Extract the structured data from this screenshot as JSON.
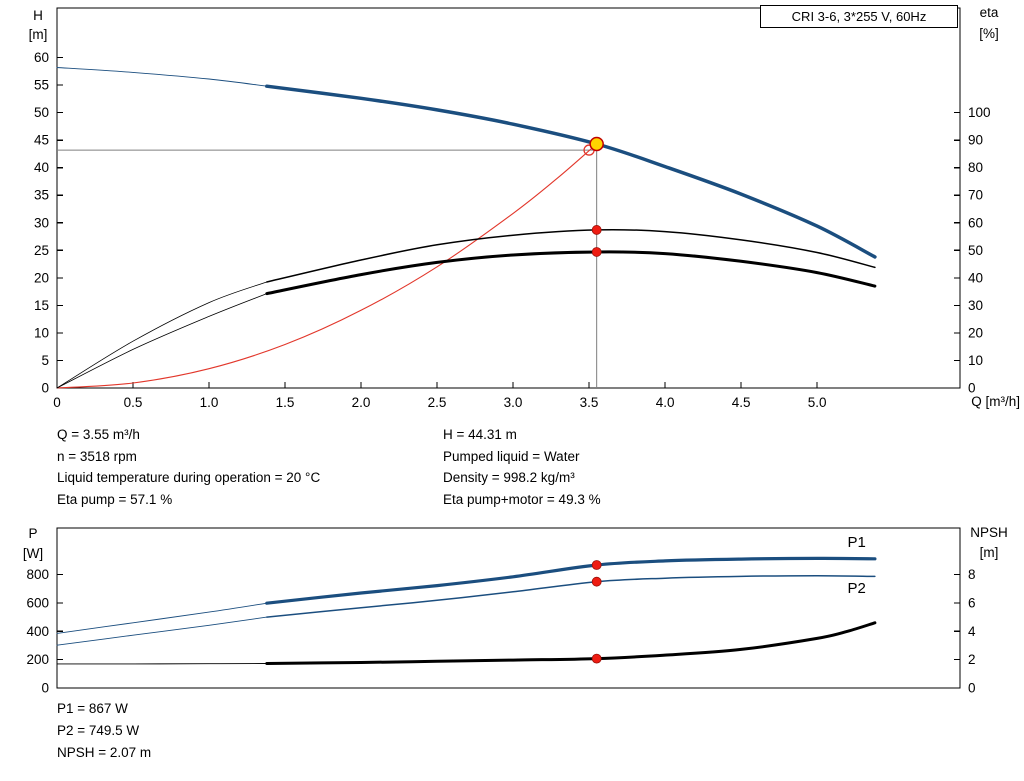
{
  "title_box": "CRI 3-6, 3*255 V, 60Hz",
  "info_top_left": [
    "Q = 3.55 m³/h",
    "n = 3518 rpm",
    "Liquid temperature during operation = 20 °C",
    "Eta pump = 57.1 %"
  ],
  "info_top_right": [
    "H = 44.31 m",
    "Pumped liquid = Water",
    "Density = 998.2 kg/m³",
    "Eta pump+motor = 49.3 %"
  ],
  "info_bottom": [
    "P1 = 867 W",
    "P2 = 749.5 W",
    "NPSH = 2.07 m"
  ],
  "colors": {
    "curve_blue": "#1b4e7f",
    "curve_red": "#e2372b",
    "marker_red": "#ee1c12",
    "duty_yellow": "#ffd400",
    "duty_ring": "#c00000",
    "crosshair_gray": "#7f7f7f",
    "label_blue": "#1b4e7f",
    "axis_black": "#000000"
  },
  "chart_data": [
    {
      "type": "line",
      "name": "qh-eta-chart",
      "x_axis": {
        "label": "Q [m³/h]",
        "min": 0,
        "max": 5.94,
        "ticks": [
          {
            "v": 0,
            "label": "0"
          },
          {
            "v": 0.5,
            "label": "0.5"
          },
          {
            "v": 1,
            "label": "1.0"
          },
          {
            "v": 1.5,
            "label": "1.5"
          },
          {
            "v": 2,
            "label": "2.0"
          },
          {
            "v": 2.5,
            "label": "2.5"
          },
          {
            "v": 3,
            "label": "3.0"
          },
          {
            "v": 3.5,
            "label": "3.5"
          },
          {
            "v": 4,
            "label": "4.0"
          },
          {
            "v": 4.5,
            "label": "4.5"
          },
          {
            "v": 5,
            "label": "5.0"
          }
        ]
      },
      "y_left": {
        "label": [
          "H",
          "[m]"
        ],
        "min": 0,
        "max": 69,
        "ticks": [
          {
            "v": 0,
            "label": "0"
          },
          {
            "v": 5,
            "label": "5"
          },
          {
            "v": 10,
            "label": "10"
          },
          {
            "v": 15,
            "label": "15"
          },
          {
            "v": 20,
            "label": "20"
          },
          {
            "v": 25,
            "label": "25"
          },
          {
            "v": 30,
            "label": "30"
          },
          {
            "v": 35,
            "label": "35"
          },
          {
            "v": 40,
            "label": "40"
          },
          {
            "v": 45,
            "label": "45"
          },
          {
            "v": 50,
            "label": "50"
          },
          {
            "v": 55,
            "label": "55"
          },
          {
            "v": 60,
            "label": "60"
          }
        ]
      },
      "y_right": {
        "label": [
          "eta",
          "[%]"
        ],
        "min": 0,
        "max": 138,
        "ticks": [
          {
            "v": 0,
            "label": "0"
          },
          {
            "v": 10,
            "label": "10"
          },
          {
            "v": 20,
            "label": "20"
          },
          {
            "v": 30,
            "label": "30"
          },
          {
            "v": 40,
            "label": "40"
          },
          {
            "v": 50,
            "label": "50"
          },
          {
            "v": 60,
            "label": "60"
          },
          {
            "v": 70,
            "label": "70"
          },
          {
            "v": 80,
            "label": "80"
          },
          {
            "v": 90,
            "label": "90"
          },
          {
            "v": 100,
            "label": "100"
          }
        ]
      },
      "series": [
        {
          "name": "pump-qh-curve",
          "axis": "left",
          "color": "#1b4e7f",
          "width": 3.5,
          "thin_until": 1.38,
          "thin_width": 0.9,
          "points": [
            [
              0,
              58.2
            ],
            [
              0.5,
              57.3
            ],
            [
              1.0,
              56.1
            ],
            [
              1.38,
              54.8
            ],
            [
              2.0,
              52.6
            ],
            [
              2.5,
              50.5
            ],
            [
              3.0,
              47.9
            ],
            [
              3.55,
              44.31
            ],
            [
              4.0,
              40.2
            ],
            [
              4.5,
              35.2
            ],
            [
              5.0,
              29.4
            ],
            [
              5.38,
              23.8
            ]
          ]
        },
        {
          "name": "system-curve",
          "axis": "left",
          "color": "#e2372b",
          "width": 1.1,
          "points": [
            [
              0,
              0
            ],
            [
              0.5,
              0.9
            ],
            [
              1.0,
              3.5
            ],
            [
              1.5,
              7.9
            ],
            [
              2.0,
              14.1
            ],
            [
              2.5,
              22.0
            ],
            [
              3.0,
              31.7
            ],
            [
              3.3,
              38.3
            ],
            [
              3.55,
              44.3
            ]
          ]
        },
        {
          "name": "eta-pump-curve",
          "axis": "right",
          "color": "#000000",
          "width": 1.5,
          "thin_until": 1.38,
          "thin_width": 0.8,
          "points": [
            [
              0,
              0
            ],
            [
              0.5,
              17
            ],
            [
              1.0,
              31
            ],
            [
              1.38,
              38.5
            ],
            [
              2.0,
              46.5
            ],
            [
              2.5,
              52
            ],
            [
              3.0,
              55.5
            ],
            [
              3.55,
              57.4
            ],
            [
              4.0,
              56.8
            ],
            [
              4.5,
              53.8
            ],
            [
              5.0,
              49.2
            ],
            [
              5.38,
              43.8
            ]
          ]
        },
        {
          "name": "eta-pump-motor-curve",
          "axis": "right",
          "color": "#000000",
          "width": 3,
          "thin_until": 1.38,
          "thin_width": 0.8,
          "points": [
            [
              0,
              0
            ],
            [
              0.5,
              14
            ],
            [
              1.0,
              26
            ],
            [
              1.38,
              34.3
            ],
            [
              2.0,
              41.2
            ],
            [
              2.5,
              45.6
            ],
            [
              3.0,
              48.3
            ],
            [
              3.55,
              49.4
            ],
            [
              4.0,
              48.8
            ],
            [
              4.5,
              46.0
            ],
            [
              5.0,
              41.9
            ],
            [
              5.38,
              37.0
            ]
          ]
        }
      ],
      "duty_point": {
        "q": 3.55,
        "h": 44.31
      },
      "requested_point": {
        "q": 3.5,
        "h": 43.2
      },
      "markers": [
        {
          "series": "eta-pump-curve",
          "q": 3.55,
          "v": 57.4
        },
        {
          "series": "eta-pump-motor-curve",
          "q": 3.55,
          "v": 49.4
        }
      ]
    },
    {
      "type": "line",
      "name": "power-npsh-chart",
      "x_axis": {
        "label": "",
        "min": 0,
        "max": 5.94,
        "ticks": []
      },
      "y_left": {
        "label": [
          "P",
          "[W]"
        ],
        "min": 0,
        "max": 1128,
        "ticks": [
          {
            "v": 0,
            "label": "0"
          },
          {
            "v": 200,
            "label": "200"
          },
          {
            "v": 400,
            "label": "400"
          },
          {
            "v": 600,
            "label": "600"
          },
          {
            "v": 800,
            "label": "800"
          }
        ]
      },
      "y_right": {
        "label": [
          "NPSH",
          "[m]"
        ],
        "min": 0,
        "max": 11.28,
        "ticks": [
          {
            "v": 0,
            "label": "0"
          },
          {
            "v": 2,
            "label": "2"
          },
          {
            "v": 4,
            "label": "4"
          },
          {
            "v": 6,
            "label": "6"
          },
          {
            "v": 8,
            "label": "8"
          }
        ]
      },
      "series": [
        {
          "name": "p1-curve",
          "axis": "left",
          "color": "#1b4e7f",
          "width": 3.2,
          "thin_until": 1.38,
          "thin_width": 0.9,
          "label": "P1",
          "label_pos": [
            5.2,
            995
          ],
          "points": [
            [
              0,
              385
            ],
            [
              0.5,
              460
            ],
            [
              1.0,
              535
            ],
            [
              1.38,
              598
            ],
            [
              2.0,
              670
            ],
            [
              2.5,
              722
            ],
            [
              3.0,
              784
            ],
            [
              3.55,
              867
            ],
            [
              4.0,
              896
            ],
            [
              4.5,
              909
            ],
            [
              5.0,
              914
            ],
            [
              5.38,
              911
            ]
          ]
        },
        {
          "name": "p2-curve",
          "axis": "left",
          "color": "#1b4e7f",
          "width": 1.5,
          "thin_until": 1.38,
          "thin_width": 0.9,
          "label": "P2",
          "label_pos": [
            5.2,
            668
          ],
          "points": [
            [
              0,
              302
            ],
            [
              0.5,
              372
            ],
            [
              1.0,
              442
            ],
            [
              1.38,
              500
            ],
            [
              2.0,
              566
            ],
            [
              2.5,
              618
            ],
            [
              3.0,
              678
            ],
            [
              3.55,
              749.5
            ],
            [
              4.0,
              774
            ],
            [
              4.5,
              787
            ],
            [
              5.0,
              792
            ],
            [
              5.38,
              787
            ]
          ]
        },
        {
          "name": "npsh-curve",
          "axis": "right",
          "color": "#000000",
          "width": 3,
          "thin_until": 1.38,
          "thin_width": 0.9,
          "points": [
            [
              0,
              1.7
            ],
            [
              0.5,
              1.7
            ],
            [
              1.0,
              1.71
            ],
            [
              1.38,
              1.73
            ],
            [
              2.0,
              1.8
            ],
            [
              2.5,
              1.88
            ],
            [
              3.0,
              1.97
            ],
            [
              3.55,
              2.07
            ],
            [
              4.0,
              2.32
            ],
            [
              4.5,
              2.72
            ],
            [
              5.0,
              3.5
            ],
            [
              5.2,
              4.0
            ],
            [
              5.38,
              4.6
            ]
          ]
        }
      ],
      "markers": [
        {
          "series": "p1-curve",
          "q": 3.55,
          "v": 867
        },
        {
          "series": "p2-curve",
          "q": 3.55,
          "v": 749.5
        },
        {
          "series": "npsh-curve",
          "q": 3.55,
          "v": 2.07
        }
      ]
    }
  ]
}
